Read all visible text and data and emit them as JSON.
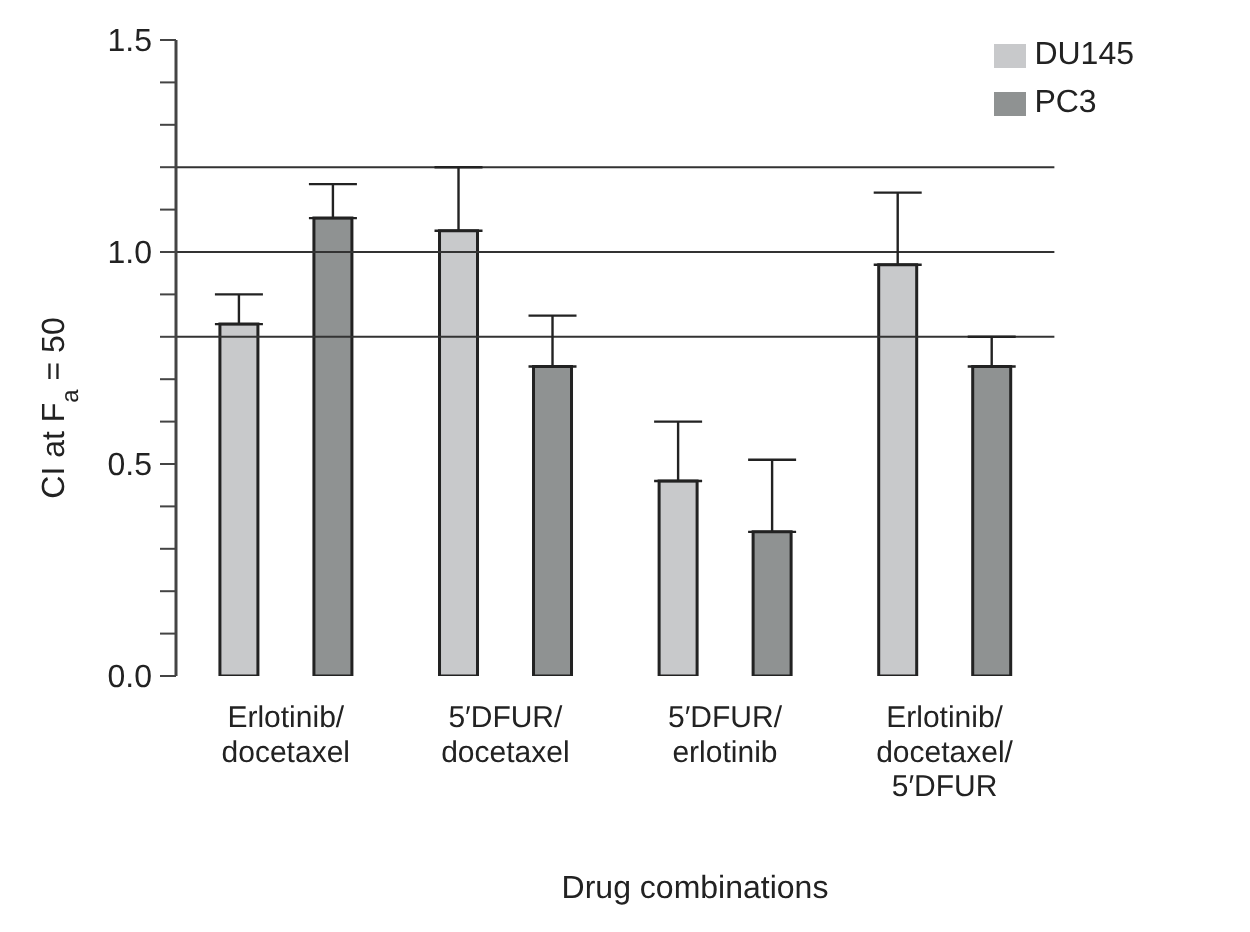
{
  "chart_data": {
    "type": "bar",
    "xlabel": "Drug combinations",
    "ylabel": "CI at F$_{a}$ = 50",
    "categories": [
      "Erlotinib/\ndocetaxel",
      "5′DFUR/\ndocetaxel",
      "5′DFUR/\nerlotinib",
      "Erlotinib/\ndocetaxel/\n5′DFUR"
    ],
    "series": [
      {
        "name": "DU145",
        "color": "#c8c9cb",
        "values": [
          0.83,
          1.05,
          0.46,
          0.97
        ],
        "errors": [
          [
            0.83,
            0.9
          ],
          [
            1.05,
            1.2
          ],
          [
            0.46,
            0.6
          ],
          [
            0.97,
            1.14
          ]
        ]
      },
      {
        "name": "PC3",
        "color": "#8f9292",
        "values": [
          1.08,
          0.73,
          0.34,
          0.73
        ],
        "errors": [
          [
            1.08,
            1.16
          ],
          [
            0.73,
            0.85
          ],
          [
            0.34,
            0.51
          ],
          [
            0.73,
            0.8
          ]
        ]
      }
    ],
    "ylim": [
      0,
      1.5
    ],
    "yticks": [
      {
        "value": 0,
        "label": "0.0"
      },
      {
        "value": 0.1,
        "label": null
      },
      {
        "value": 0.2,
        "label": null
      },
      {
        "value": 0.3,
        "label": null
      },
      {
        "value": 0.4,
        "label": null
      },
      {
        "value": 0.5,
        "label": "0.5"
      },
      {
        "value": 0.6,
        "label": null
      },
      {
        "value": 0.7,
        "label": null
      },
      {
        "value": 0.8,
        "label": null
      },
      {
        "value": 0.9,
        "label": null
      },
      {
        "value": 1.0,
        "label": "1.0"
      },
      {
        "value": 1.1,
        "label": null
      },
      {
        "value": 1.2,
        "label": null
      },
      {
        "value": 1.3,
        "label": null
      },
      {
        "value": 1.4,
        "label": null
      },
      {
        "value": 1.5,
        "label": "1.5"
      }
    ],
    "ref_lines": [
      {
        "axis": "y",
        "value": 0.8,
        "color": "#333333"
      },
      {
        "axis": "y",
        "value": 1.0,
        "color": "#333333"
      },
      {
        "axis": "y",
        "value": 1.2,
        "color": "#333333"
      }
    ],
    "legend": "top right",
    "grid": false
  }
}
